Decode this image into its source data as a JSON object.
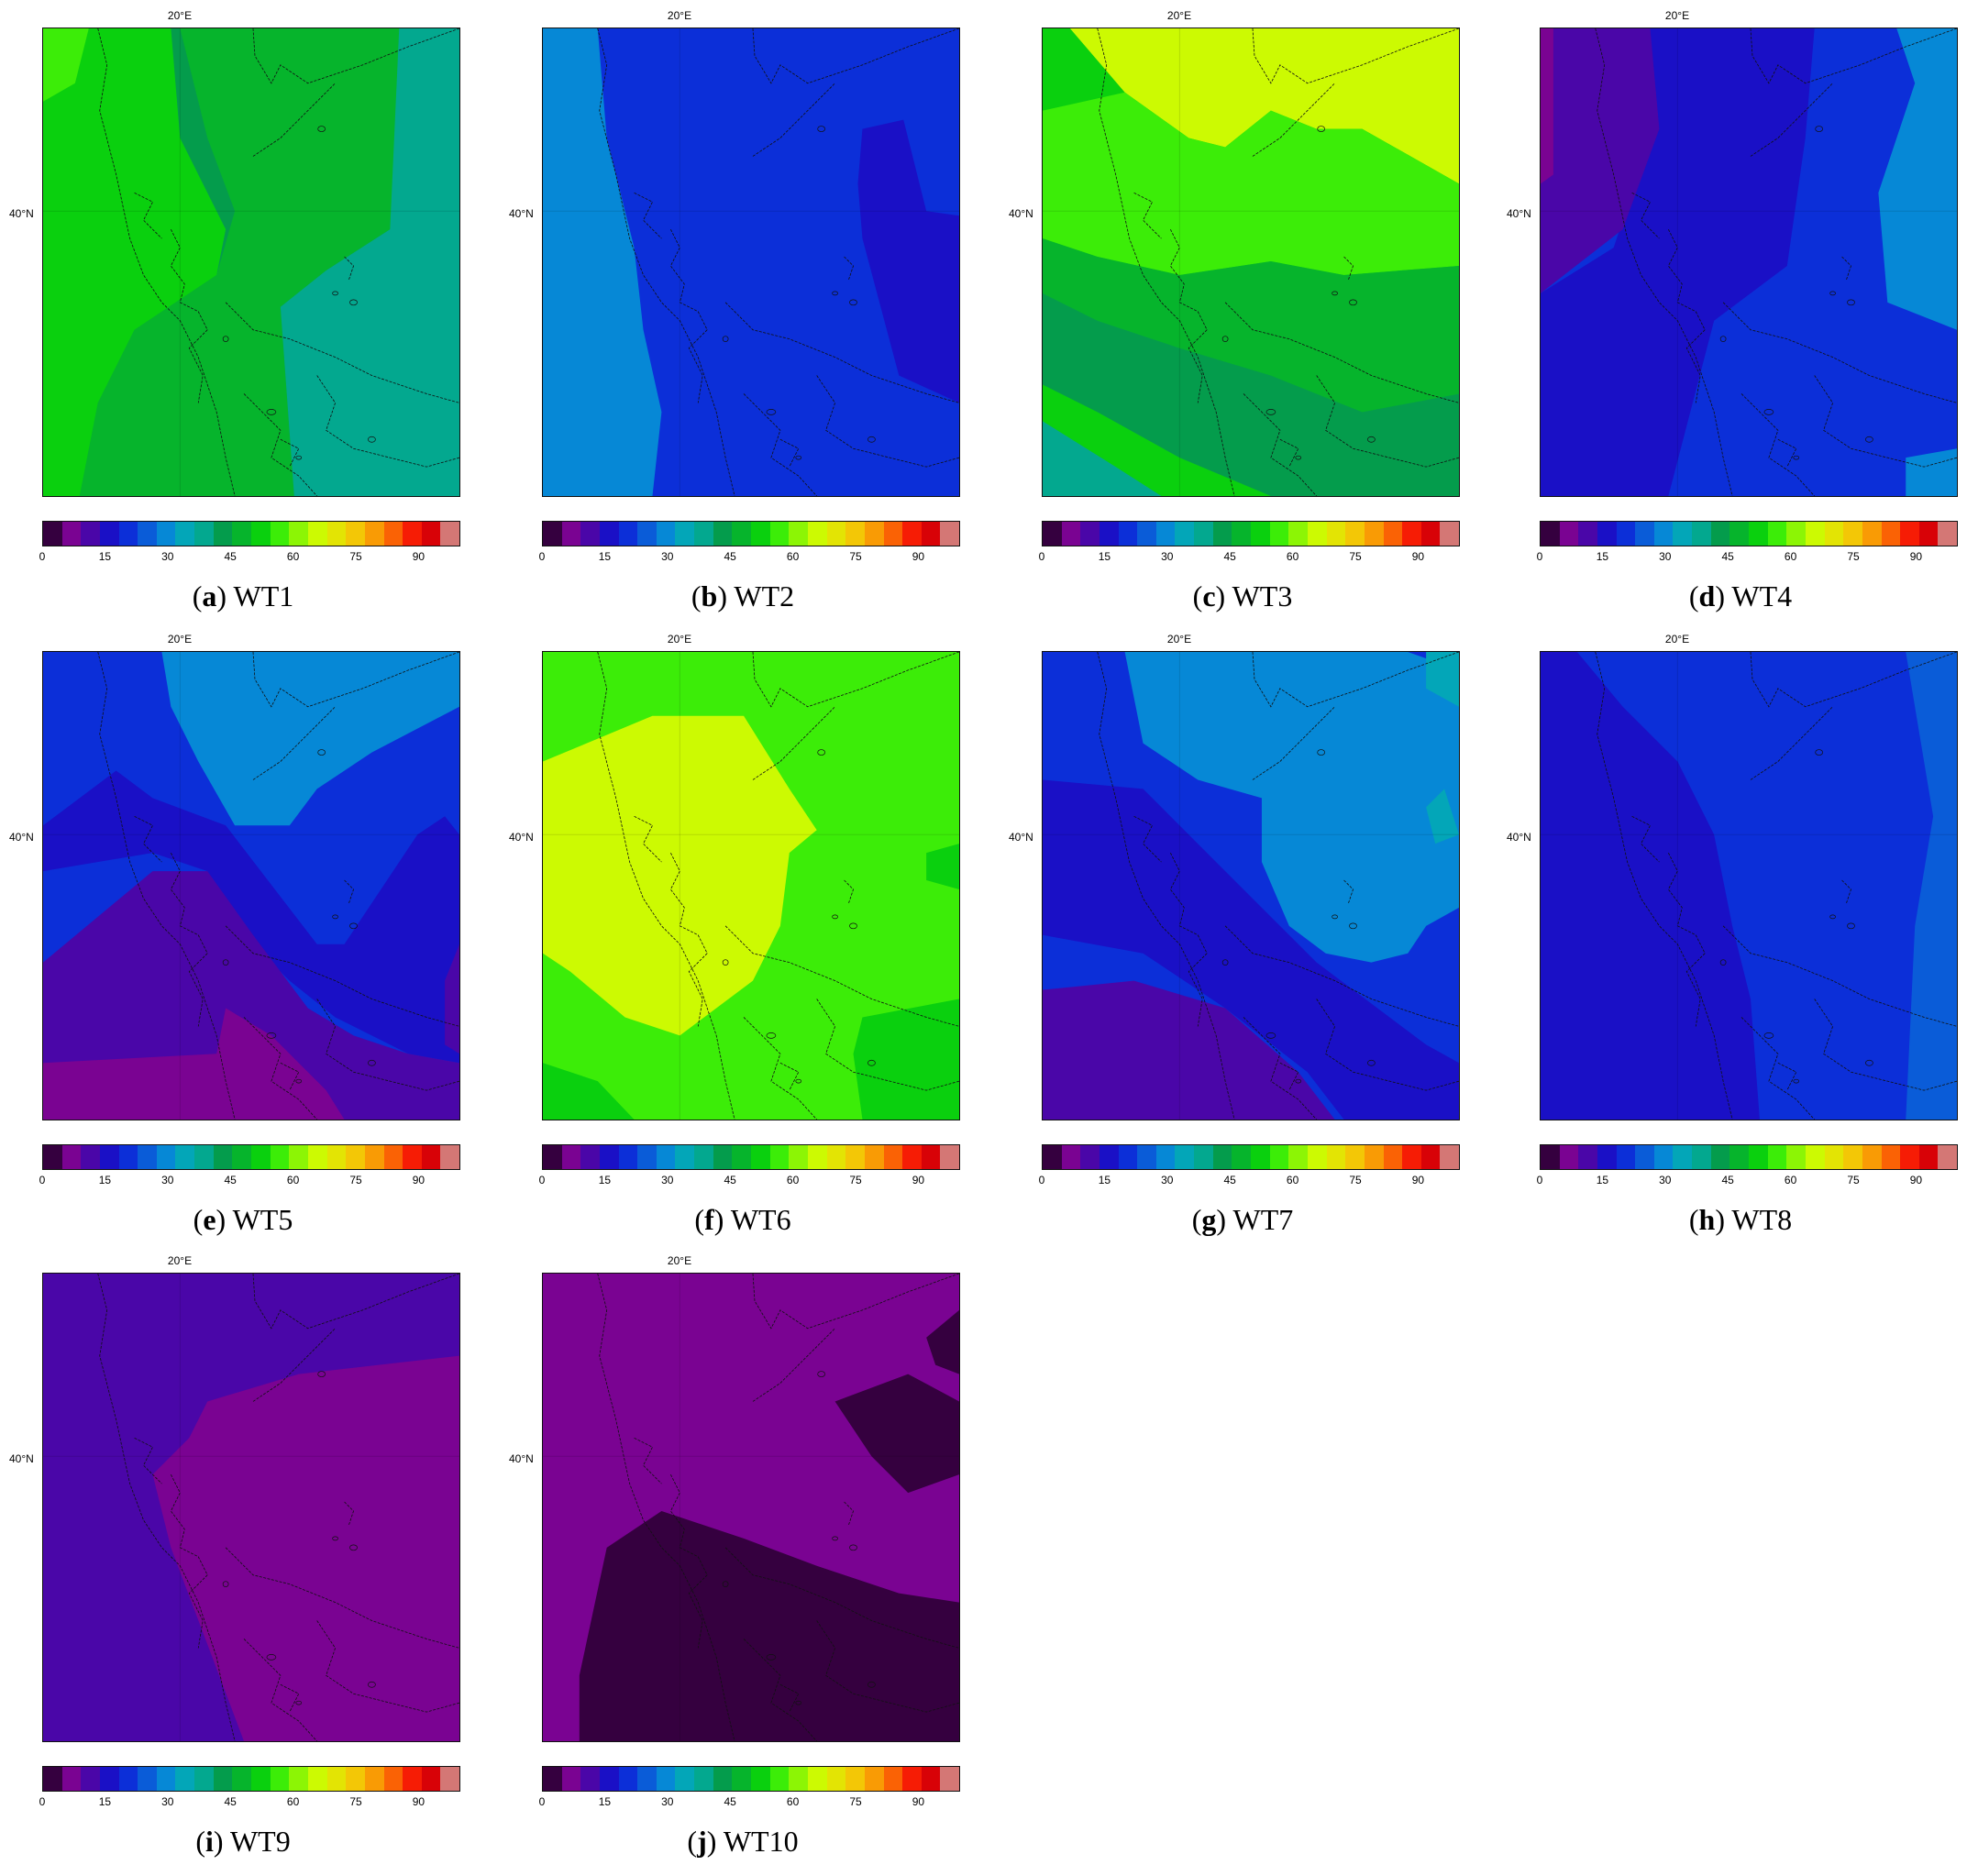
{
  "lon_label": "20°E",
  "lat_label": "40°N",
  "colorbar": {
    "colors": [
      "#35003f",
      "#7a0392",
      "#4a06a8",
      "#1a10c6",
      "#0c2fd8",
      "#0a5cd8",
      "#0688d6",
      "#03a6b8",
      "#03a88f",
      "#049c4c",
      "#06b42c",
      "#0ad00e",
      "#3ced08",
      "#8cf505",
      "#ccfa02",
      "#e3e404",
      "#f3c706",
      "#f99b05",
      "#fa6205",
      "#f61c05",
      "#d80207",
      "#d47775"
    ],
    "tick_labels": [
      "0",
      "15",
      "30",
      "45",
      "60",
      "75",
      "90"
    ],
    "tick_values": [
      0,
      15,
      30,
      45,
      60,
      75,
      90
    ],
    "range": [
      0,
      100
    ]
  },
  "panels": [
    {
      "letter": "a",
      "name": "WT1",
      "caption_letter": "(a)",
      "caption_name": "WT1",
      "colors": {
        "bg": "#049c4c",
        "c1": "#06b42c",
        "c2": "#0ad00e",
        "c3": "#3ced08",
        "c4": "#03a88f"
      }
    },
    {
      "letter": "b",
      "name": "WT2",
      "caption_letter": "(b)",
      "caption_name": "WT2",
      "colors": {
        "bg": "#0c2fd8",
        "c1": "#0688d6",
        "c2": "#1a10c6"
      }
    },
    {
      "letter": "c",
      "name": "WT3",
      "caption_letter": "(c)",
      "caption_name": "WT3",
      "colors": {
        "bg": "#0ad00e",
        "c1": "#ccfa02",
        "c2": "#3ced08",
        "c3": "#06b42c",
        "c4": "#049c4c",
        "c5": "#03a88f"
      }
    },
    {
      "letter": "d",
      "name": "WT4",
      "caption_letter": "(d)",
      "caption_name": "WT4",
      "colors": {
        "bg": "#0c2fd8",
        "c1": "#1a10c6",
        "c2": "#4a06a8",
        "c3": "#7a0392",
        "c4": "#0688d6"
      }
    },
    {
      "letter": "e",
      "name": "WT5",
      "caption_letter": "(e)",
      "caption_name": "WT5",
      "colors": {
        "bg": "#0c2fd8",
        "c1": "#0688d6",
        "c2": "#1a10c6",
        "c3": "#4a06a8",
        "c4": "#7a0392"
      }
    },
    {
      "letter": "f",
      "name": "WT6",
      "caption_letter": "(f)",
      "caption_name": "WT6",
      "colors": {
        "bg": "#3ced08",
        "c1": "#ccfa02",
        "c2": "#0ad00e"
      }
    },
    {
      "letter": "g",
      "name": "WT7",
      "caption_letter": "(g)",
      "caption_name": "WT7",
      "colors": {
        "bg": "#0c2fd8",
        "c1": "#0688d6",
        "c2": "#1a10c6",
        "c3": "#4a06a8",
        "c4": "#03a6b8"
      }
    },
    {
      "letter": "h",
      "name": "WT8",
      "caption_letter": "(h)",
      "caption_name": "WT8",
      "colors": {
        "bg": "#0c2fd8",
        "c1": "#1a10c6",
        "c2": "#0a5cd8"
      }
    },
    {
      "letter": "i",
      "name": "WT9",
      "caption_letter": "(i)",
      "caption_name": "WT9",
      "colors": {
        "bg": "#4a06a8",
        "c1": "#7a0392"
      }
    },
    {
      "letter": "j",
      "name": "WT10",
      "caption_letter": "(j)",
      "caption_name": "WT10",
      "colors": {
        "bg": "#7a0392",
        "c1": "#35003f"
      }
    }
  ]
}
